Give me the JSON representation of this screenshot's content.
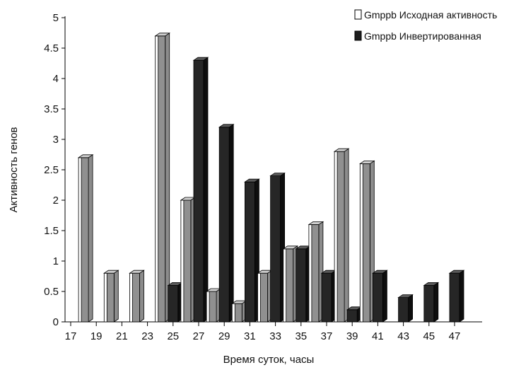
{
  "chart_data": {
    "type": "bar",
    "title": "",
    "xlabel": "Время суток, часы",
    "ylabel": "Активность генов",
    "x_ticks": [
      "17",
      "19",
      "21",
      "23",
      "25",
      "27",
      "29",
      "31",
      "33",
      "35",
      "37",
      "39",
      "41",
      "43",
      "45",
      "47"
    ],
    "y_ticks": [
      "0",
      "0.5",
      "1",
      "1.5",
      "2",
      "2.5",
      "3",
      "3.5",
      "4",
      "4.5",
      "5"
    ],
    "ylim": [
      0,
      5
    ],
    "xlim": [
      17,
      48.5
    ],
    "grid": false,
    "legend_position": "top-right",
    "series": [
      {
        "name": "Gmppb Исходная активность",
        "style": "white-front",
        "color": "#ffffff",
        "x": [
          18,
          20,
          22,
          24,
          26,
          28,
          30,
          32,
          34,
          36,
          38,
          40
        ],
        "values": [
          2.7,
          0.8,
          0.8,
          4.7,
          2.0,
          0.5,
          0.3,
          0.8,
          1.2,
          1.6,
          2.8,
          2.6
        ]
      },
      {
        "name": "Gmppb Инвертированная",
        "style": "dark",
        "color": "#1e1e1e",
        "x": [
          25,
          27,
          29,
          31,
          33,
          35,
          37,
          39,
          41,
          43,
          45,
          47
        ],
        "values": [
          0.6,
          4.3,
          3.2,
          2.3,
          2.4,
          1.2,
          0.8,
          0.2,
          0.8,
          0.4,
          0.6,
          0.8
        ]
      }
    ]
  }
}
